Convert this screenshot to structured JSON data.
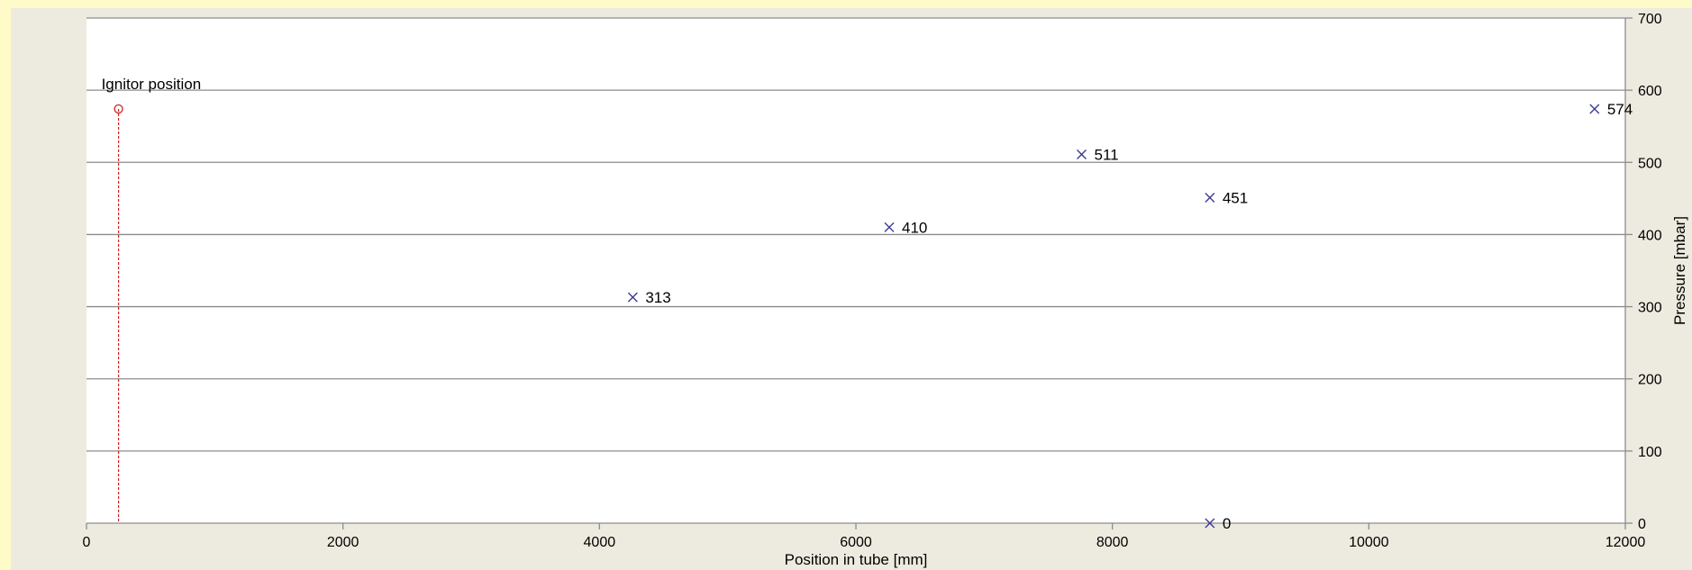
{
  "chart_data": {
    "type": "scatter",
    "xlabel": "Position in tube [mm]",
    "ylabel": "Pressure [mbar]",
    "xlim": [
      0,
      12000
    ],
    "ylim": [
      0,
      700
    ],
    "x_ticks": [
      0,
      2000,
      4000,
      6000,
      8000,
      10000,
      12000
    ],
    "y_ticks": [
      0,
      100,
      200,
      300,
      400,
      500,
      600,
      700
    ],
    "grid": "horizontal",
    "y_axis_side": "right",
    "series": [
      {
        "marker": "x",
        "color": "#3d3d8f",
        "points": [
          {
            "x": 4260,
            "y": 313,
            "label": "313"
          },
          {
            "x": 6260,
            "y": 410,
            "label": "410"
          },
          {
            "x": 7760,
            "y": 511,
            "label": "511"
          },
          {
            "x": 8760,
            "y": 451,
            "label": "451"
          },
          {
            "x": 8760,
            "y": 0,
            "label": "0"
          },
          {
            "x": 11760,
            "y": 574,
            "label": "574"
          }
        ]
      }
    ],
    "annotation": {
      "text": "Ignitor position",
      "x": 250,
      "y": 574,
      "marker": "circle",
      "color": "#d42020",
      "line_style": "dashed"
    }
  }
}
